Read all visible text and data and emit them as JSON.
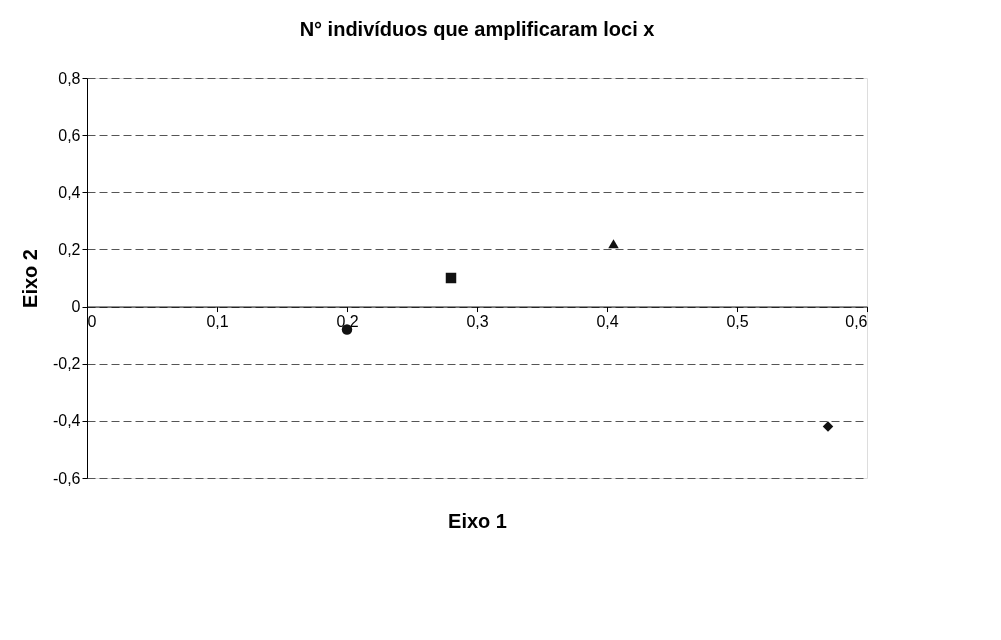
{
  "chart_data": {
    "type": "scatter",
    "title": "N° indivíduos que amplificaram loci x",
    "xlabel": "Eixo 1",
    "ylabel": "Eixo 2",
    "xlim": [
      0,
      0.6
    ],
    "ylim": [
      -0.6,
      0.8
    ],
    "xticks": [
      {
        "value": 0,
        "label": "0"
      },
      {
        "value": 0.1,
        "label": "0,1"
      },
      {
        "value": 0.2,
        "label": "0,2"
      },
      {
        "value": 0.3,
        "label": "0,3"
      },
      {
        "value": 0.4,
        "label": "0,4"
      },
      {
        "value": 0.5,
        "label": "0,5"
      },
      {
        "value": 0.6,
        "label": "0,6"
      }
    ],
    "yticks": [
      {
        "value": -0.6,
        "label": "-0,6"
      },
      {
        "value": -0.4,
        "label": "-0,4"
      },
      {
        "value": -0.2,
        "label": "-0,2"
      },
      {
        "value": 0,
        "label": "0"
      },
      {
        "value": 0.2,
        "label": "0,2"
      },
      {
        "value": 0.4,
        "label": "0,4"
      },
      {
        "value": 0.6,
        "label": "0,6"
      },
      {
        "value": 0.8,
        "label": "0,8"
      }
    ],
    "grid": "y",
    "series": [
      {
        "color": "#111111",
        "marker": "diamond",
        "x": [
          0.57
        ],
        "values": [
          -0.42
        ]
      },
      {
        "color": "#111111",
        "marker": "circle",
        "x": [
          0.2
        ],
        "values": [
          -0.08
        ]
      },
      {
        "color": "#111111",
        "marker": "square",
        "x": [
          0.28
        ],
        "values": [
          0.1
        ]
      },
      {
        "color": "#111111",
        "marker": "triangle",
        "x": [
          0.405
        ],
        "values": [
          0.22
        ]
      }
    ]
  }
}
